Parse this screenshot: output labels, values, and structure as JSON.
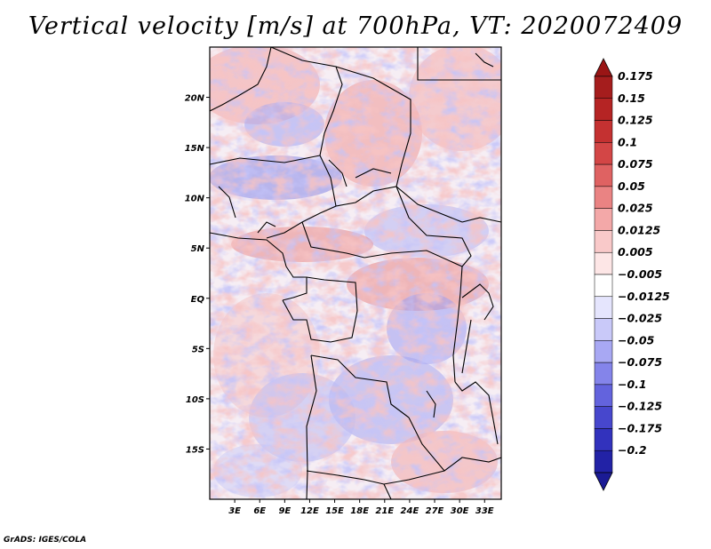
{
  "title": "Vertical velocity [m/s] at 700hPa, VT: 2020072409",
  "credit": "GrADS: IGES/COLA",
  "map": {
    "lon_range": [
      0,
      35
    ],
    "lat_range": [
      -20,
      25
    ],
    "lat_ticks": [
      {
        "value": 20,
        "label": "20N"
      },
      {
        "value": 15,
        "label": "15N"
      },
      {
        "value": 10,
        "label": "10N"
      },
      {
        "value": 5,
        "label": "5N"
      },
      {
        "value": 0,
        "label": "EQ"
      },
      {
        "value": -5,
        "label": "5S"
      },
      {
        "value": -10,
        "label": "10S"
      },
      {
        "value": -15,
        "label": "15S"
      }
    ],
    "lon_ticks": [
      {
        "value": 3,
        "label": "3E"
      },
      {
        "value": 6,
        "label": "6E"
      },
      {
        "value": 9,
        "label": "9E"
      },
      {
        "value": 12,
        "label": "12E"
      },
      {
        "value": 15,
        "label": "15E"
      },
      {
        "value": 18,
        "label": "18E"
      },
      {
        "value": 21,
        "label": "21E"
      },
      {
        "value": 24,
        "label": "24E"
      },
      {
        "value": 27,
        "label": "27E"
      },
      {
        "value": 30,
        "label": "30E"
      },
      {
        "value": 33,
        "label": "33E"
      }
    ]
  },
  "colorbar": {
    "levels": [
      {
        "label": "0.175",
        "color": "#a51d1d"
      },
      {
        "label": "0.15",
        "color": "#b52424"
      },
      {
        "label": "0.125",
        "color": "#c43131"
      },
      {
        "label": "0.1",
        "color": "#d34646"
      },
      {
        "label": "0.075",
        "color": "#df6262"
      },
      {
        "label": "0.05",
        "color": "#ea8383"
      },
      {
        "label": "0.025",
        "color": "#f3a8a8"
      },
      {
        "label": "0.0125",
        "color": "#f9c9c9"
      },
      {
        "label": "0.005",
        "color": "#fde6e6"
      },
      {
        "label": "−0.005",
        "color": "#ffffff"
      },
      {
        "label": "−0.0125",
        "color": "#e5e5fd"
      },
      {
        "label": "−0.025",
        "color": "#c9c9f9"
      },
      {
        "label": "−0.05",
        "color": "#a8a8f3"
      },
      {
        "label": "−0.075",
        "color": "#8484ea"
      },
      {
        "label": "−0.1",
        "color": "#6363dd"
      },
      {
        "label": "−0.125",
        "color": "#4747cd"
      },
      {
        "label": "−0.175",
        "color": "#3232bd"
      },
      {
        "label": "−0.2",
        "color": "#2222a6"
      }
    ],
    "top_color": "#9a1515",
    "bottom_color": "#1b1b95"
  }
}
